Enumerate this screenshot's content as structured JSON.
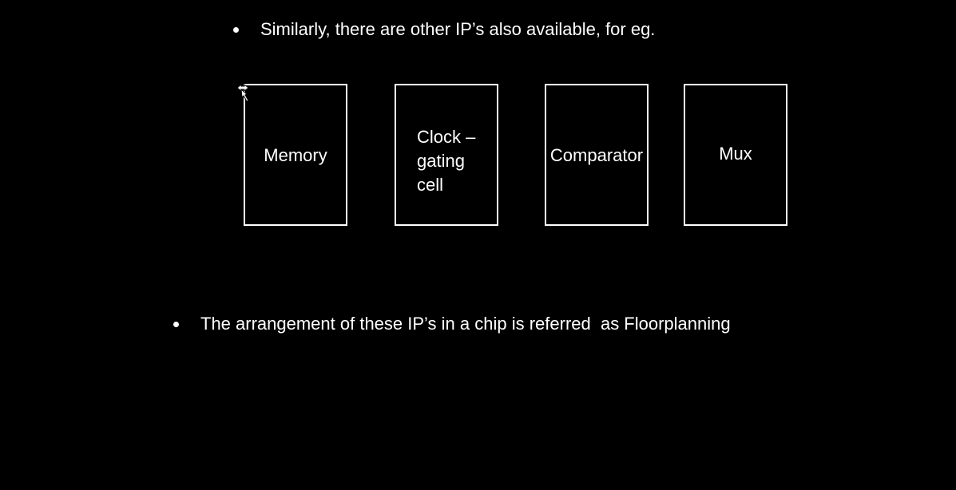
{
  "slide": {
    "bullet_1": "Similarly, there are other IP’s also available, for eg.",
    "bullet_2": "The arrangement of these IP’s in a chip is referred  as Floorplanning",
    "ip_blocks": [
      {
        "label": "Memory"
      },
      {
        "label": "Clock –\ngating\ncell"
      },
      {
        "label": "Comparator"
      },
      {
        "label": "Mux"
      }
    ]
  },
  "colors": {
    "background": "#000000",
    "foreground": "#ffffff"
  },
  "icons": {
    "cursor": "move-cursor-icon"
  }
}
